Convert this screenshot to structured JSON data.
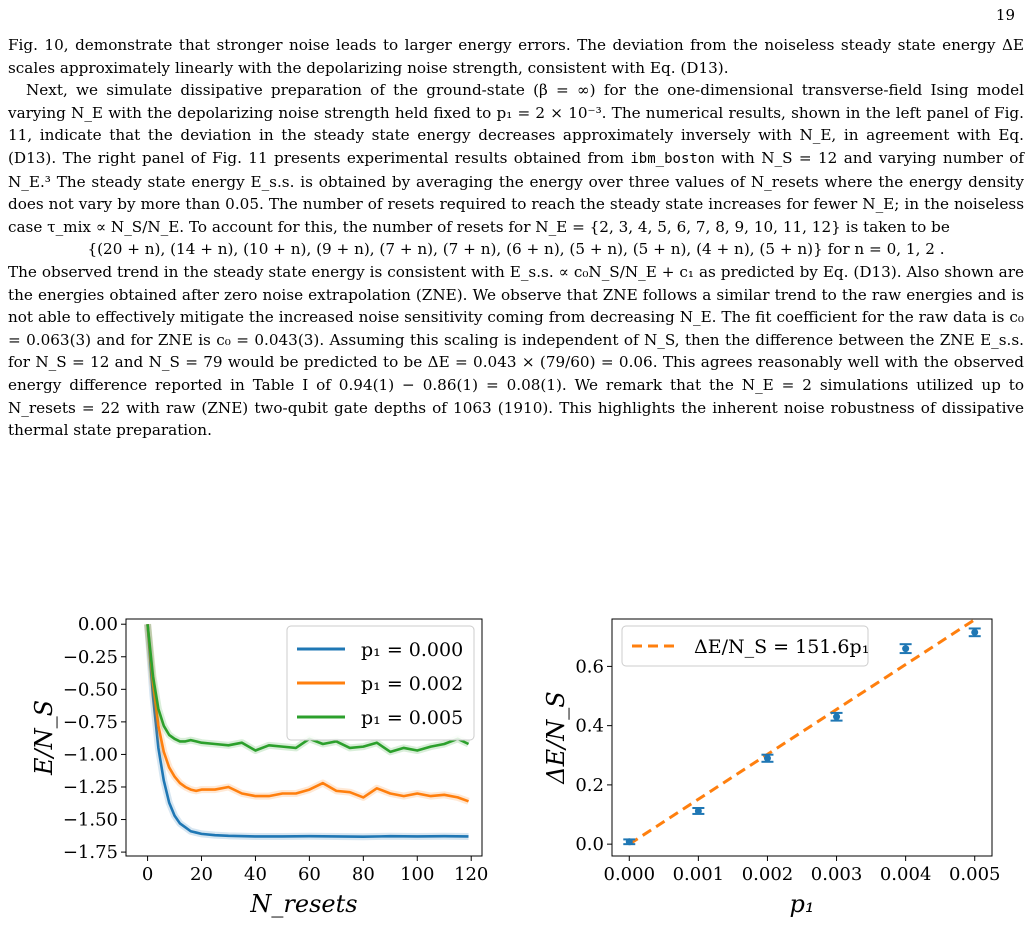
{
  "page_number": "19",
  "paragraphs": {
    "p1": "Fig. 10, demonstrate that stronger noise leads to larger energy errors. The deviation from the noiseless steady state energy ΔE scales approximately linearly with the depolarizing noise strength, consistent with Eq. (D13).",
    "p2a": "Next, we simulate dissipative preparation of the ground-state (β = ∞) for the one-dimensional transverse-field Ising model varying N_E with the depolarizing noise strength held fixed to p₁ = 2 × 10⁻³. The numerical results, shown in the left panel of Fig. 11, indicate that the deviation in the steady state energy decreases approximately inversely with N_E, in agreement with Eq. (D13). The right panel of Fig. 11 presents experimental results obtained from",
    "p2_device": "ibm_boston",
    "p2b": "with N_S = 12 and varying number of N_E.³ The steady state energy E_s.s. is obtained by averaging the energy over three values of N_resets where the energy density does not vary by more than 0.05. The number of resets required to reach the steady state increases for fewer N_E; in the noiseless case τ_mix ∝ N_S/N_E. To account for this, the number of resets for N_E = {2, 3, 4, 5, 6, 7, 8, 9, 10, 11, 12} is taken to be",
    "equation": "{(20 + n), (14 + n), (10 + n), (9 + n), (7 + n), (7 + n), (6 + n), (5 + n), (5 + n), (4 + n), (5 + n)}    for n = 0, 1, 2 .",
    "p3": "The observed trend in the steady state energy is consistent with E_s.s. ∝ c₀N_S/N_E + c₁ as predicted by Eq. (D13). Also shown are the energies obtained after zero noise extrapolation (ZNE). We observe that ZNE follows a similar trend to the raw energies and is not able to effectively mitigate the increased noise sensitivity coming from decreasing N_E. The fit coefficient for the raw data is c₀ = 0.063(3) and for ZNE is c₀ = 0.043(3). Assuming this scaling is independent of N_S, then the difference between the ZNE E_s.s. for N_S = 12 and N_S = 79 would be predicted to be ΔE = 0.043 × (79/60) = 0.06. This agrees reasonably well with the observed energy difference reported in Table I of 0.94(1) − 0.86(1) = 0.08(1). We remark that the N_E = 2 simulations utilized up to N_resets = 22 with raw (ZNE) two-qubit gate depths of 1063 (1910). This highlights the inherent noise robustness of dissipative thermal state preparation."
  },
  "link_color": "#1f1fd0",
  "chart_data": [
    {
      "type": "line",
      "xlabel": "N_resets",
      "ylabel": "E/N_S",
      "xlim": [
        -8,
        124
      ],
      "ylim": [
        -1.78,
        0.04
      ],
      "xticks": [
        0,
        20,
        40,
        60,
        80,
        100,
        120
      ],
      "yticks": [
        0.0,
        -0.25,
        -0.5,
        -0.75,
        -1.0,
        -1.25,
        -1.5,
        -1.75
      ],
      "ytick_labels": [
        "0.00",
        "−0.25",
        "−0.50",
        "−0.75",
        "−1.00",
        "−1.25",
        "−1.50",
        "−1.75"
      ],
      "legend_position": "top-right",
      "grid": false,
      "series": [
        {
          "name": "p₁ = 0.000",
          "color": "#1f77b4",
          "x": [
            0,
            2,
            4,
            6,
            8,
            10,
            12,
            14,
            16,
            18,
            20,
            25,
            30,
            40,
            50,
            60,
            70,
            80,
            90,
            100,
            110,
            119
          ],
          "y": [
            0.0,
            -0.55,
            -0.95,
            -1.2,
            -1.37,
            -1.47,
            -1.53,
            -1.56,
            -1.59,
            -1.6,
            -1.61,
            -1.62,
            -1.625,
            -1.63,
            -1.63,
            -1.628,
            -1.63,
            -1.632,
            -1.628,
            -1.63,
            -1.628,
            -1.63
          ]
        },
        {
          "name": "p₁ = 0.002",
          "color": "#ff7f0e",
          "x": [
            0,
            2,
            4,
            6,
            8,
            10,
            12,
            14,
            16,
            18,
            20,
            25,
            30,
            35,
            40,
            45,
            50,
            55,
            60,
            65,
            70,
            75,
            80,
            85,
            90,
            95,
            100,
            105,
            110,
            115,
            119
          ],
          "y": [
            0.0,
            -0.45,
            -0.78,
            -0.98,
            -1.1,
            -1.17,
            -1.22,
            -1.25,
            -1.27,
            -1.28,
            -1.27,
            -1.27,
            -1.25,
            -1.3,
            -1.32,
            -1.32,
            -1.3,
            -1.3,
            -1.27,
            -1.22,
            -1.28,
            -1.29,
            -1.33,
            -1.26,
            -1.3,
            -1.32,
            -1.3,
            -1.32,
            -1.31,
            -1.33,
            -1.36
          ]
        },
        {
          "name": "p₁ = 0.005",
          "color": "#2ca02c",
          "x": [
            0,
            2,
            4,
            6,
            8,
            10,
            12,
            14,
            16,
            18,
            20,
            25,
            30,
            35,
            40,
            45,
            50,
            55,
            60,
            65,
            70,
            75,
            80,
            85,
            90,
            95,
            100,
            105,
            110,
            115,
            119
          ],
          "y": [
            0.0,
            -0.4,
            -0.65,
            -0.78,
            -0.85,
            -0.88,
            -0.9,
            -0.9,
            -0.89,
            -0.9,
            -0.91,
            -0.92,
            -0.93,
            -0.91,
            -0.97,
            -0.93,
            -0.94,
            -0.95,
            -0.88,
            -0.92,
            -0.9,
            -0.95,
            -0.94,
            -0.91,
            -0.98,
            -0.95,
            -0.97,
            -0.94,
            -0.92,
            -0.88,
            -0.92
          ]
        }
      ]
    },
    {
      "type": "scatter",
      "xlabel": "p₁",
      "ylabel": "ΔE/N_S",
      "xlim": [
        -0.00025,
        0.00525
      ],
      "ylim": [
        -0.04,
        0.76
      ],
      "xticks": [
        0.0,
        0.001,
        0.002,
        0.003,
        0.004,
        0.005
      ],
      "xtick_labels": [
        "0.000",
        "0.001",
        "0.002",
        "0.003",
        "0.004",
        "0.005"
      ],
      "yticks": [
        0.0,
        0.2,
        0.4,
        0.6
      ],
      "ytick_labels": [
        "0.0",
        "0.2",
        "0.4",
        "0.6"
      ],
      "legend_position": "top-left",
      "grid": false,
      "points": {
        "color": "#1f77b4",
        "x": [
          0.0,
          0.001,
          0.002,
          0.003,
          0.004,
          0.005
        ],
        "y": [
          0.008,
          0.112,
          0.29,
          0.43,
          0.66,
          0.715
        ],
        "yerr": [
          0.008,
          0.01,
          0.012,
          0.013,
          0.015,
          0.013
        ]
      },
      "fit": {
        "name": "ΔE/N_S = 151.6p₁",
        "color": "#ff7f0e",
        "slope": 151.6,
        "x": [
          0.0,
          0.005
        ]
      }
    }
  ]
}
